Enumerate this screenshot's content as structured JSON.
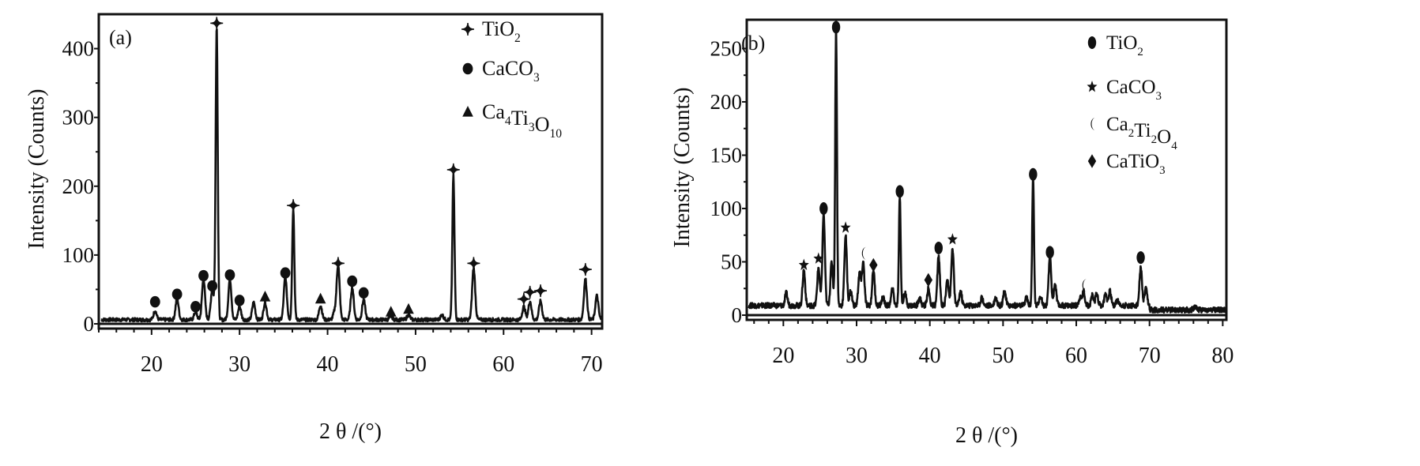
{
  "chart_data": [
    {
      "type": "line",
      "panel_label": "(a)",
      "xlabel": "2 θ /(°)",
      "ylabel": "Intensity (Counts)",
      "xlim": [
        14,
        71.2
      ],
      "ylim": [
        0,
        450
      ],
      "xticks": [
        20,
        30,
        40,
        50,
        60,
        70
      ],
      "yticks": [
        0,
        100,
        200,
        300,
        400
      ],
      "grid": false,
      "legend_position": "top-right",
      "baseline": 6,
      "legend": [
        {
          "marker": "cross",
          "label": "TiO",
          "sub": "2"
        },
        {
          "marker": "circle",
          "label": "CaCO",
          "sub": "3"
        },
        {
          "marker": "triangle",
          "label": "Ca",
          "sub": "4",
          "label2": "Ti",
          "sub2": "3",
          "label3": "O",
          "sub3": "10"
        }
      ],
      "peaks": [
        {
          "x": 20.4,
          "y": 16,
          "marker": "circle",
          "my": 32
        },
        {
          "x": 22.9,
          "y": 34,
          "marker": "circle",
          "my": 43
        },
        {
          "x": 25.0,
          "y": 14,
          "marker": "circle",
          "my": 25
        },
        {
          "x": 25.9,
          "y": 62,
          "marker": "circle",
          "my": 70
        },
        {
          "x": 26.9,
          "y": 48,
          "marker": "circle",
          "my": 55
        },
        {
          "x": 27.4,
          "y": 430,
          "marker": "cross",
          "my": 437
        },
        {
          "x": 28.9,
          "y": 62,
          "marker": "circle",
          "my": 71
        },
        {
          "x": 30.0,
          "y": 22,
          "marker": "circle",
          "my": 34
        },
        {
          "x": 31.6,
          "y": 28
        },
        {
          "x": 32.9,
          "y": 28,
          "marker": "triangle",
          "my": 39
        },
        {
          "x": 35.2,
          "y": 65,
          "marker": "circle",
          "my": 74
        },
        {
          "x": 36.1,
          "y": 165,
          "marker": "cross",
          "my": 172
        },
        {
          "x": 39.2,
          "y": 24,
          "marker": "triangle",
          "my": 36
        },
        {
          "x": 40.8,
          "y": 14
        },
        {
          "x": 41.2,
          "y": 82,
          "marker": "cross",
          "my": 88
        },
        {
          "x": 42.8,
          "y": 50,
          "marker": "circle",
          "my": 62
        },
        {
          "x": 44.1,
          "y": 32,
          "marker": "circle",
          "my": 45
        },
        {
          "x": 47.2,
          "y": 8,
          "marker": "triangle",
          "my": 17
        },
        {
          "x": 49.2,
          "y": 10,
          "marker": "triangle",
          "my": 21
        },
        {
          "x": 53.0,
          "y": 10
        },
        {
          "x": 54.3,
          "y": 212,
          "marker": "cross",
          "my": 224
        },
        {
          "x": 56.6,
          "y": 78,
          "marker": "cross",
          "my": 88
        },
        {
          "x": 62.3,
          "y": 22,
          "marker": "cross",
          "my": 36
        },
        {
          "x": 63.0,
          "y": 30,
          "marker": "cross",
          "my": 46
        },
        {
          "x": 64.2,
          "y": 30,
          "marker": "cross",
          "my": 48
        },
        {
          "x": 69.3,
          "y": 62,
          "marker": "cross",
          "my": 79
        },
        {
          "x": 70.6,
          "y": 38
        }
      ]
    },
    {
      "type": "line",
      "panel_label": "(b)",
      "xlabel": "2 θ /(°)",
      "ylabel": "Intensity (Counts)",
      "xlim": [
        15,
        80.5
      ],
      "ylim": [
        0,
        277
      ],
      "xticks": [
        20,
        30,
        40,
        50,
        60,
        70,
        80
      ],
      "yticks": [
        0,
        50,
        100,
        150,
        200,
        250
      ],
      "grid": false,
      "legend_position": "top-right",
      "baseline": 9,
      "legend": [
        {
          "marker": "oval",
          "label": "TiO",
          "sub": "2"
        },
        {
          "marker": "star",
          "label": "CaCO",
          "sub": "3"
        },
        {
          "marker": "crescent",
          "label": "Ca",
          "sub": "2",
          "label2": "Ti",
          "sub2": "2",
          "label3": "O",
          "sub3": "4"
        },
        {
          "marker": "diamond",
          "label": "CaTiO",
          "sub": "3"
        }
      ],
      "peaks": [
        {
          "x": 20.4,
          "y": 16
        },
        {
          "x": 22.8,
          "y": 38,
          "marker": "star",
          "my": 47
        },
        {
          "x": 24.8,
          "y": 40,
          "marker": "star",
          "my": 53
        },
        {
          "x": 25.5,
          "y": 90,
          "marker": "oval",
          "my": 100
        },
        {
          "x": 26.6,
          "y": 45
        },
        {
          "x": 27.2,
          "y": 265,
          "marker": "oval",
          "my": 270
        },
        {
          "x": 28.5,
          "y": 70,
          "marker": "star",
          "my": 82
        },
        {
          "x": 29.2,
          "y": 18
        },
        {
          "x": 30.4,
          "y": 35
        },
        {
          "x": 30.9,
          "y": 45,
          "marker": "crescent",
          "my": 58
        },
        {
          "x": 32.3,
          "y": 38,
          "marker": "diamond",
          "my": 47
        },
        {
          "x": 33.6,
          "y": 12
        },
        {
          "x": 34.9,
          "y": 20
        },
        {
          "x": 35.9,
          "y": 108,
          "marker": "oval",
          "my": 116
        },
        {
          "x": 36.6,
          "y": 16
        },
        {
          "x": 38.6,
          "y": 12
        },
        {
          "x": 39.8,
          "y": 20,
          "marker": "diamond",
          "my": 33
        },
        {
          "x": 41.2,
          "y": 50,
          "marker": "oval",
          "my": 63
        },
        {
          "x": 42.4,
          "y": 30
        },
        {
          "x": 43.1,
          "y": 58,
          "marker": "star",
          "my": 71
        },
        {
          "x": 44.2,
          "y": 18
        },
        {
          "x": 47.1,
          "y": 12
        },
        {
          "x": 49.0,
          "y": 12
        },
        {
          "x": 50.2,
          "y": 19
        },
        {
          "x": 53.2,
          "y": 12
        },
        {
          "x": 54.1,
          "y": 125,
          "marker": "oval",
          "my": 132
        },
        {
          "x": 55.1,
          "y": 14
        },
        {
          "x": 56.4,
          "y": 50,
          "marker": "oval",
          "my": 59
        },
        {
          "x": 57.1,
          "y": 25
        },
        {
          "x": 60.5,
          "y": 12
        },
        {
          "x": 61.0,
          "y": 18,
          "marker": "crescent",
          "my": 28
        },
        {
          "x": 62.2,
          "y": 14
        },
        {
          "x": 62.8,
          "y": 16
        },
        {
          "x": 64.0,
          "y": 16
        },
        {
          "x": 64.6,
          "y": 18
        },
        {
          "x": 65.6,
          "y": 10
        },
        {
          "x": 68.8,
          "y": 40,
          "marker": "oval",
          "my": 54
        },
        {
          "x": 69.5,
          "y": 20
        },
        {
          "x": 76.2,
          "y": 8
        }
      ]
    }
  ]
}
